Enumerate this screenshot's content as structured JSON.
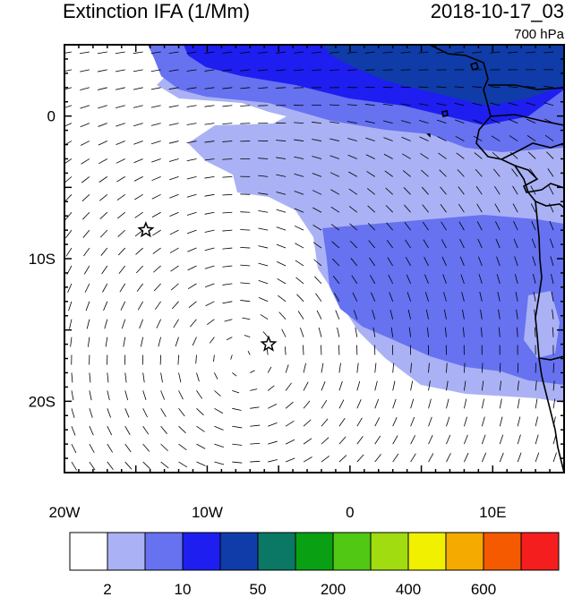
{
  "header": {
    "title": "Extinction IFA (1/Mm)",
    "datetime": "2018-10-17_03",
    "level": "700 hPa"
  },
  "axes": {
    "x_ticks": [
      {
        "lon": -20,
        "label": "20W"
      },
      {
        "lon": -10,
        "label": "10W"
      },
      {
        "lon": 0,
        "label": "0"
      },
      {
        "lon": 10,
        "label": "10E"
      }
    ],
    "y_ticks": [
      {
        "lat": 0,
        "label": "0"
      },
      {
        "lat": -10,
        "label": "10S"
      },
      {
        "lat": -20,
        "label": "20S"
      }
    ],
    "lon_range": [
      -20,
      15
    ],
    "lat_range": [
      -25,
      5
    ]
  },
  "colorbar": {
    "colors": [
      "#ffffff",
      "#aab2f5",
      "#6672f0",
      "#1e1ef0",
      "#0f3ca8",
      "#0a7864",
      "#0aa014",
      "#50c814",
      "#a0dc0f",
      "#f0f000",
      "#f5aa00",
      "#f55a00",
      "#f51e1e"
    ],
    "labels": [
      {
        "index": 1,
        "text": "2"
      },
      {
        "index": 3,
        "text": "10"
      },
      {
        "index": 5,
        "text": "50"
      },
      {
        "index": 7,
        "text": "200"
      },
      {
        "index": 9,
        "text": "400"
      },
      {
        "index": 11,
        "text": "600"
      }
    ]
  },
  "markers": [
    {
      "type": "star",
      "lon": -14.3,
      "lat": -8.0
    },
    {
      "type": "star",
      "lon": -5.7,
      "lat": -16.0
    }
  ],
  "wind_field": {
    "anticyclone_center": {
      "lon": -7.5,
      "lat": -17
    }
  },
  "colors": {
    "coast": "#000000",
    "wind": "#000000"
  }
}
